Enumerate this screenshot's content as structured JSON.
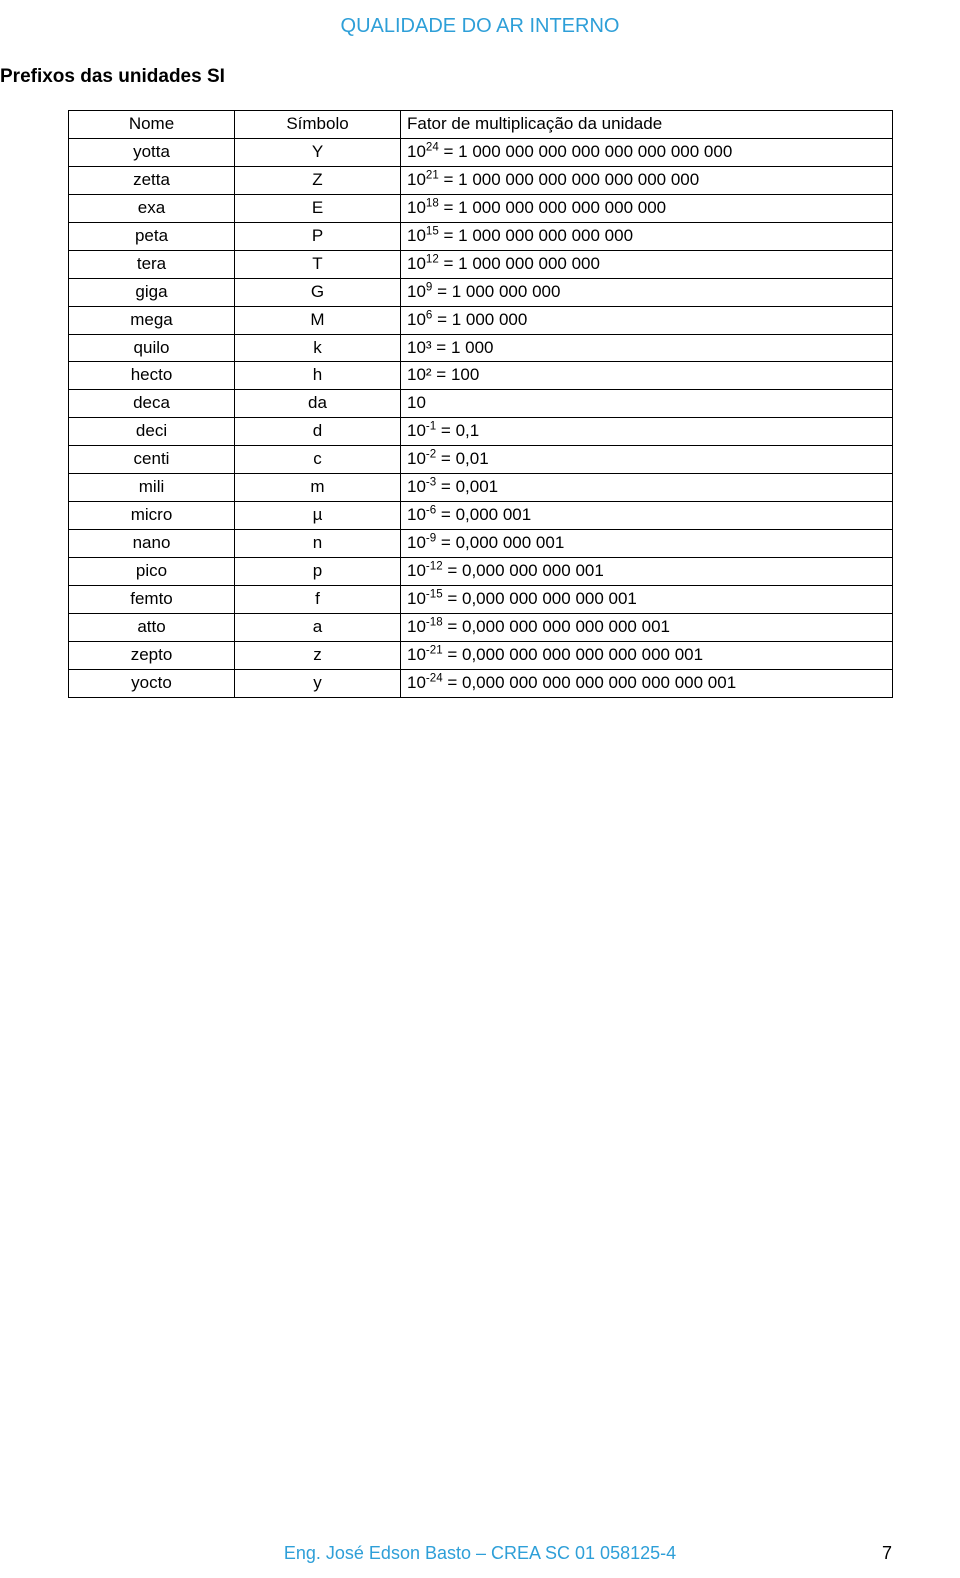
{
  "header": {
    "title": "QUALIDADE DO AR INTERNO"
  },
  "subtitle": "Prefixos das unidades SI",
  "table": {
    "columns": [
      "Nome",
      "Símbolo",
      "Fator de multiplicação da unidade"
    ],
    "rows": [
      {
        "nome": "yotta",
        "simbolo": "Y",
        "base": "10",
        "exp": "24",
        "rest": " = 1 000 000 000 000 000 000 000 000"
      },
      {
        "nome": "zetta",
        "simbolo": "Z",
        "base": "10",
        "exp": "21",
        "rest": " = 1 000 000 000 000 000 000 000"
      },
      {
        "nome": "exa",
        "simbolo": "E",
        "base": "10",
        "exp": "18",
        "rest": " = 1 000 000 000 000 000 000"
      },
      {
        "nome": "peta",
        "simbolo": "P",
        "base": "10",
        "exp": "15",
        "rest": " = 1 000 000 000 000 000"
      },
      {
        "nome": "tera",
        "simbolo": "T",
        "base": "10",
        "exp": "12",
        "rest": " = 1 000 000 000 000"
      },
      {
        "nome": "giga",
        "simbolo": "G",
        "base": "10",
        "exp": "9",
        "rest": " = 1 000 000 000"
      },
      {
        "nome": "mega",
        "simbolo": "M",
        "base": "10",
        "exp": "6",
        "rest": " = 1 000 000"
      },
      {
        "nome": "quilo",
        "simbolo": "k",
        "base": "",
        "exp": "",
        "rest": "10³ = 1 000"
      },
      {
        "nome": "hecto",
        "simbolo": "h",
        "base": "",
        "exp": "",
        "rest": "10² = 100"
      },
      {
        "nome": "deca",
        "simbolo": "da",
        "base": "",
        "exp": "",
        "rest": "10"
      },
      {
        "nome": "deci",
        "simbolo": "d",
        "base": "10",
        "exp": "-1",
        "rest": " = 0,1"
      },
      {
        "nome": "centi",
        "simbolo": "c",
        "base": "10",
        "exp": "-2",
        "rest": " = 0,01"
      },
      {
        "nome": "mili",
        "simbolo": "m",
        "base": "10",
        "exp": "-3",
        "rest": " = 0,001"
      },
      {
        "nome": "micro",
        "simbolo": "µ",
        "base": "10",
        "exp": "-6",
        "rest": " = 0,000 001"
      },
      {
        "nome": "nano",
        "simbolo": "n",
        "base": "10",
        "exp": "-9",
        "rest": " = 0,000 000 001"
      },
      {
        "nome": "pico",
        "simbolo": "p",
        "base": "10",
        "exp": "-12",
        "rest": " = 0,000 000 000 001"
      },
      {
        "nome": "femto",
        "simbolo": "f",
        "base": "10",
        "exp": "-15",
        "rest": " = 0,000 000 000 000 001"
      },
      {
        "nome": "atto",
        "simbolo": "a",
        "base": "10",
        "exp": "-18",
        "rest": " = 0,000 000 000 000 000 001"
      },
      {
        "nome": "zepto",
        "simbolo": "z",
        "base": "10",
        "exp": "-21",
        "rest": " = 0,000 000 000 000 000 000 001"
      },
      {
        "nome": "yocto",
        "simbolo": "y",
        "base": "10",
        "exp": "-24",
        "rest": " = 0,000 000 000 000 000 000 000 001"
      }
    ]
  },
  "footer": {
    "text": "Eng. José Edson Basto – CREA SC 01 058125-4",
    "page": "7"
  },
  "colors": {
    "accent": "#2e9fd8",
    "text": "#000000",
    "border": "#000000",
    "background": "#ffffff"
  }
}
